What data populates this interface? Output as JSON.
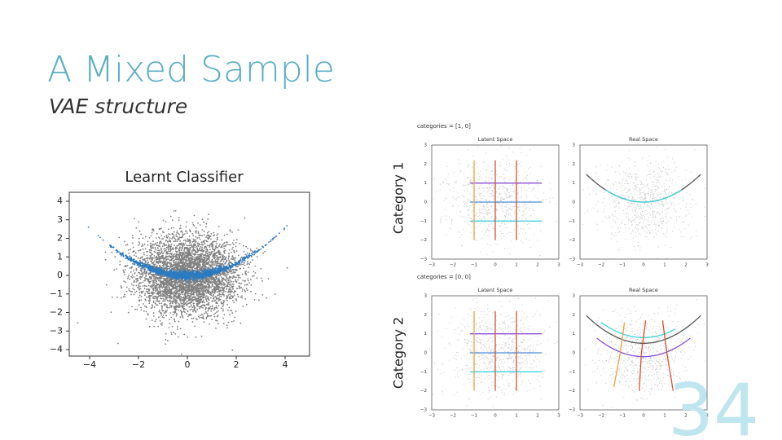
{
  "title": "A Mixed Sample",
  "subtitle": "VAE structure",
  "classifier": {
    "title": "Learnt Classifier",
    "yticks": [
      "4",
      "3",
      "2",
      "1",
      "0",
      "−1",
      "−2",
      "−3",
      "−4"
    ],
    "xticks": [
      "−4",
      "−2",
      "0",
      "2",
      "4"
    ]
  },
  "categories": [
    {
      "label": "Category 1",
      "header": "categories = [1, 0]",
      "panels": [
        {
          "title": "Latent Space",
          "yticks": [
            "3",
            "2",
            "1",
            "0",
            "−1",
            "−2",
            "−3"
          ],
          "xticks": [
            "−3",
            "−2",
            "−1",
            "0",
            "1",
            "2",
            "3"
          ]
        },
        {
          "title": "Real Space",
          "yticks": [
            "3",
            "2",
            "1",
            "0",
            "−1",
            "−2",
            "−3"
          ],
          "xticks": [
            "−3",
            "−2",
            "−1",
            "0",
            "1",
            "2",
            "3"
          ]
        }
      ]
    },
    {
      "label": "Category 2",
      "header": "categories = [0, 0]",
      "panels": [
        {
          "title": "Latent Space",
          "yticks": [
            "3",
            "2",
            "1",
            "0",
            "−1",
            "−2",
            "−3"
          ],
          "xticks": [
            "−3",
            "−2",
            "−1",
            "0",
            "1",
            "2",
            "3"
          ]
        },
        {
          "title": "Real Space",
          "yticks": [
            "3",
            "2",
            "1",
            "0",
            "−1",
            "−2",
            "−3"
          ],
          "xticks": [
            "−3",
            "−2",
            "−1",
            "0",
            "1",
            "2",
            "3"
          ]
        }
      ]
    }
  ],
  "page_number": "34"
}
